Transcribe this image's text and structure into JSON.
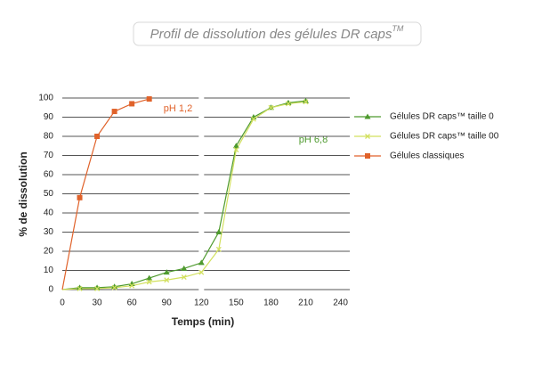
{
  "chart_data": {
    "type": "line",
    "title": "Profil de dissolution des gélules DR caps",
    "title_sup": "TM",
    "x_label": "Temps (min)",
    "y_label": "% de dissolution",
    "x": [
      0,
      15,
      30,
      45,
      60,
      75,
      90,
      105,
      120,
      135,
      150,
      165,
      180,
      195,
      210
    ],
    "series": [
      {
        "name": "Gélules DR caps™ taille 0",
        "color": "#4e9a2e",
        "marker": "triangle",
        "values": [
          0,
          1,
          1,
          1.5,
          3,
          6,
          9,
          11,
          14,
          30,
          75,
          90,
          95,
          97.5,
          98.5
        ]
      },
      {
        "name": "Gélules DR caps™ taille 00",
        "color": "#d2e05e",
        "marker": "x",
        "values": [
          0,
          0.5,
          0.5,
          1,
          2,
          4,
          5,
          6.5,
          9,
          21,
          73,
          89,
          95,
          97,
          98
        ]
      },
      {
        "name": "Gélules classiques",
        "color": "#e0622a",
        "marker": "square",
        "values": [
          0,
          48,
          80,
          93,
          97,
          99.5,
          null,
          null,
          null,
          null,
          null,
          null,
          null,
          null,
          null
        ]
      }
    ],
    "annotations": [
      {
        "text": "pH 1,2",
        "color": "#e0622a"
      },
      {
        "text": "pH 6,8",
        "color": "#4e9a2e"
      }
    ],
    "axis_break": 120,
    "xlim": [
      0,
      248
    ],
    "ylim": [
      0,
      100
    ],
    "xticks": [
      0,
      30,
      60,
      90,
      120,
      150,
      180,
      210,
      240
    ],
    "yticks": [
      0,
      10,
      20,
      30,
      40,
      50,
      60,
      70,
      80,
      90,
      100
    ],
    "grid": true,
    "legend": "right"
  }
}
